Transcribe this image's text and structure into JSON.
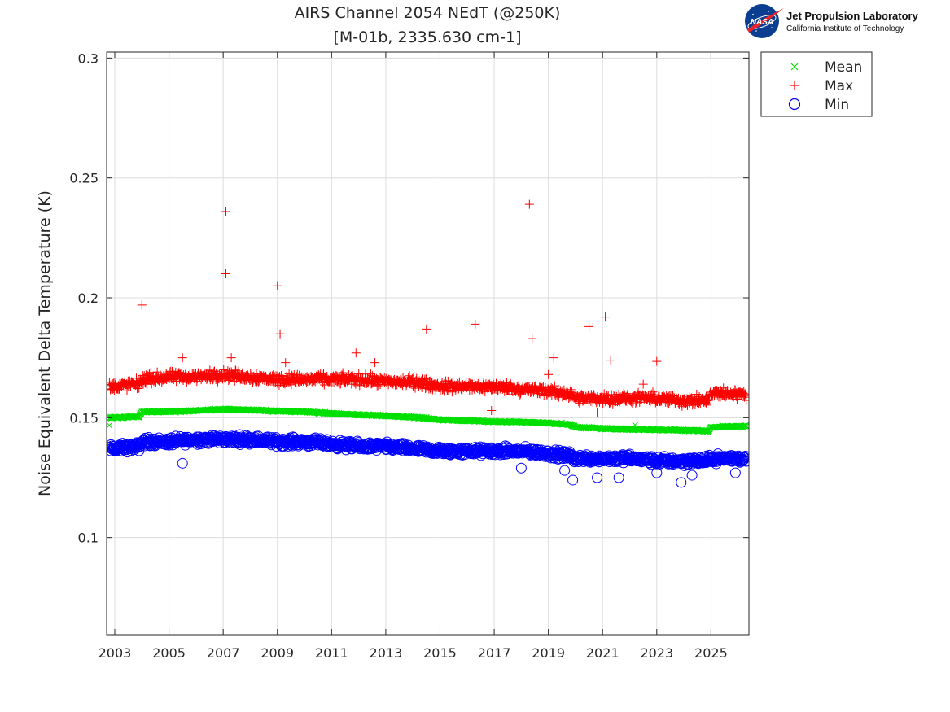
{
  "logo": {
    "emblem_text": "NASA",
    "title": "Jet Propulsion Laboratory",
    "subtitle": "California Institute of Technology"
  },
  "chart_data": {
    "type": "scatter",
    "title": "AIRS Channel 2054 NEdT (@250K)",
    "subtitle": "[M-01b, 2335.630 cm-1]",
    "xlabel": "",
    "ylabel": "Noise Equivalent Delta Temperature (K)",
    "xlim": [
      2002.7,
      2026.4
    ],
    "ylim": [
      0.0595,
      0.3025
    ],
    "x_ticks": [
      "2003",
      "2005",
      "2007",
      "2009",
      "2011",
      "2013",
      "2015",
      "2017",
      "2019",
      "2021",
      "2023",
      "2025"
    ],
    "y_ticks": [
      "0.1",
      "0.15",
      "0.2",
      "0.25",
      "0.3"
    ],
    "grid": true,
    "legend_position": "outside-top-right",
    "colors": {
      "Mean": "#00e000",
      "Max": "#ff0000",
      "Min": "#0000ff",
      "grid": "#dcdcdc",
      "axes": "#262626"
    },
    "series": [
      {
        "name": "Mean",
        "marker": "x",
        "note_density": "daily points forming a thin band",
        "band": [
          [
            2002.8,
            0.15
          ],
          [
            2003.9,
            0.1505
          ],
          [
            2004.0,
            0.1525
          ],
          [
            2005.0,
            0.1525
          ],
          [
            2006.0,
            0.153
          ],
          [
            2007.0,
            0.1535
          ],
          [
            2008.0,
            0.1532
          ],
          [
            2009.0,
            0.1528
          ],
          [
            2010.0,
            0.1525
          ],
          [
            2011.0,
            0.1518
          ],
          [
            2012.0,
            0.1512
          ],
          [
            2013.0,
            0.1508
          ],
          [
            2014.0,
            0.1502
          ],
          [
            2015.0,
            0.1492
          ],
          [
            2016.0,
            0.1488
          ],
          [
            2017.0,
            0.1484
          ],
          [
            2018.0,
            0.1482
          ],
          [
            2019.0,
            0.1478
          ],
          [
            2019.8,
            0.1472
          ],
          [
            2020.0,
            0.146
          ],
          [
            2021.0,
            0.1455
          ],
          [
            2022.0,
            0.1452
          ],
          [
            2023.0,
            0.145
          ],
          [
            2024.0,
            0.1448
          ],
          [
            2024.9,
            0.1445
          ],
          [
            2025.0,
            0.146
          ],
          [
            2026.3,
            0.1465
          ]
        ],
        "outliers": [
          [
            2022.2,
            0.147
          ]
        ]
      },
      {
        "name": "Max",
        "marker": "+",
        "band": [
          [
            2002.8,
            0.163
          ],
          [
            2003.9,
            0.164
          ],
          [
            2004.0,
            0.166
          ],
          [
            2005.0,
            0.167
          ],
          [
            2006.0,
            0.167
          ],
          [
            2007.0,
            0.168
          ],
          [
            2008.0,
            0.167
          ],
          [
            2009.0,
            0.166
          ],
          [
            2010.0,
            0.166
          ],
          [
            2011.0,
            0.166
          ],
          [
            2012.0,
            0.166
          ],
          [
            2013.0,
            0.165
          ],
          [
            2014.0,
            0.165
          ],
          [
            2015.0,
            0.163
          ],
          [
            2016.0,
            0.163
          ],
          [
            2017.0,
            0.163
          ],
          [
            2018.0,
            0.162
          ],
          [
            2019.0,
            0.161
          ],
          [
            2019.8,
            0.16
          ],
          [
            2020.0,
            0.158
          ],
          [
            2021.0,
            0.158
          ],
          [
            2022.0,
            0.158
          ],
          [
            2023.0,
            0.158
          ],
          [
            2024.0,
            0.157
          ],
          [
            2024.9,
            0.157
          ],
          [
            2025.0,
            0.16
          ],
          [
            2026.3,
            0.16
          ]
        ],
        "outliers": [
          [
            2004.0,
            0.197
          ],
          [
            2005.5,
            0.175
          ],
          [
            2007.1,
            0.236
          ],
          [
            2007.1,
            0.21
          ],
          [
            2007.3,
            0.175
          ],
          [
            2009.0,
            0.205
          ],
          [
            2009.1,
            0.185
          ],
          [
            2009.3,
            0.173
          ],
          [
            2011.9,
            0.177
          ],
          [
            2012.6,
            0.173
          ],
          [
            2014.5,
            0.187
          ],
          [
            2016.3,
            0.189
          ],
          [
            2016.9,
            0.153
          ],
          [
            2018.3,
            0.239
          ],
          [
            2018.4,
            0.183
          ],
          [
            2019.2,
            0.175
          ],
          [
            2019.0,
            0.168
          ],
          [
            2020.5,
            0.188
          ],
          [
            2020.8,
            0.152
          ],
          [
            2021.1,
            0.192
          ],
          [
            2021.3,
            0.174
          ],
          [
            2023.0,
            0.1735
          ],
          [
            2022.5,
            0.164
          ]
        ]
      },
      {
        "name": "Min",
        "marker": "o",
        "band": [
          [
            2002.8,
            0.137
          ],
          [
            2003.9,
            0.138
          ],
          [
            2004.0,
            0.14
          ],
          [
            2005.0,
            0.14
          ],
          [
            2006.0,
            0.141
          ],
          [
            2007.0,
            0.141
          ],
          [
            2008.0,
            0.141
          ],
          [
            2009.0,
            0.14
          ],
          [
            2010.0,
            0.14
          ],
          [
            2011.0,
            0.139
          ],
          [
            2012.0,
            0.138
          ],
          [
            2013.0,
            0.138
          ],
          [
            2014.0,
            0.137
          ],
          [
            2015.0,
            0.136
          ],
          [
            2016.0,
            0.136
          ],
          [
            2017.0,
            0.136
          ],
          [
            2018.0,
            0.136
          ],
          [
            2019.0,
            0.135
          ],
          [
            2019.8,
            0.134
          ],
          [
            2020.0,
            0.133
          ],
          [
            2021.0,
            0.133
          ],
          [
            2022.0,
            0.133
          ],
          [
            2023.0,
            0.132
          ],
          [
            2024.0,
            0.132
          ],
          [
            2024.9,
            0.132
          ],
          [
            2025.0,
            0.133
          ],
          [
            2026.3,
            0.133
          ]
        ],
        "outliers": [
          [
            2005.5,
            0.131
          ],
          [
            2019.9,
            0.124
          ],
          [
            2020.8,
            0.125
          ],
          [
            2021.6,
            0.125
          ],
          [
            2023.0,
            0.127
          ],
          [
            2023.9,
            0.123
          ],
          [
            2024.3,
            0.126
          ],
          [
            2018.0,
            0.129
          ],
          [
            2019.6,
            0.128
          ],
          [
            2025.9,
            0.127
          ]
        ]
      }
    ]
  }
}
